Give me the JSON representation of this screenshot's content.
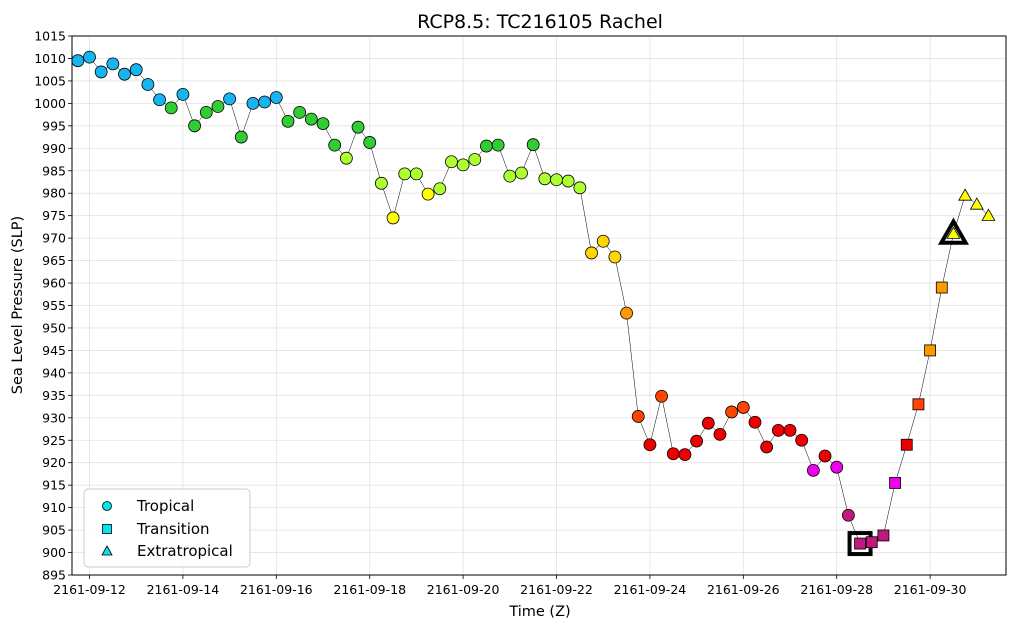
{
  "chart_data": {
    "type": "scatter",
    "title": "RCP8.5: TC216105 Rachel",
    "xlabel": "Time (Z)",
    "ylabel": "Sea Level Pressure (SLP)",
    "x_start_date": "2161-09-12",
    "xlim": [
      "2161-09-11T15:00",
      "2161-10-01T15:00"
    ],
    "ylim": [
      895,
      1015
    ],
    "ytick_step": 5,
    "xtick_labels": [
      "2161-09-12",
      "2161-09-14",
      "2161-09-16",
      "2161-09-18",
      "2161-09-20",
      "2161-09-22",
      "2161-09-24",
      "2161-09-26",
      "2161-09-28",
      "2161-09-30"
    ],
    "grid": true,
    "legend_position": "lower-left",
    "legend": [
      {
        "label": "Tropical",
        "marker": "circle",
        "color": "#00e5ee"
      },
      {
        "label": "Transition",
        "marker": "square",
        "color": "#00e5ee"
      },
      {
        "label": "Extratropical",
        "marker": "triangle",
        "color": "#00e5ee"
      }
    ],
    "category_colors": {
      "TD": "#18b4ef",
      "TS": "#32cd32",
      "C0": "#adff2f",
      "C1": "#ffff00",
      "C2": "#ffd700",
      "C3": "#ff9900",
      "C4": "#ff4500",
      "C5": "#ee0000",
      "C6": "#ee00ee",
      "C7": "#c0187f"
    },
    "points": [
      {
        "x": "2161-09-11T18:00",
        "y": 1009.5,
        "marker": "circle",
        "cat": "TD"
      },
      {
        "x": "2161-09-12T00:00",
        "y": 1010.3,
        "marker": "circle",
        "cat": "TD"
      },
      {
        "x": "2161-09-12T06:00",
        "y": 1007.0,
        "marker": "circle",
        "cat": "TD"
      },
      {
        "x": "2161-09-12T12:00",
        "y": 1008.8,
        "marker": "circle",
        "cat": "TD"
      },
      {
        "x": "2161-09-12T18:00",
        "y": 1006.5,
        "marker": "circle",
        "cat": "TD"
      },
      {
        "x": "2161-09-13T00:00",
        "y": 1007.5,
        "marker": "circle",
        "cat": "TD"
      },
      {
        "x": "2161-09-13T06:00",
        "y": 1004.2,
        "marker": "circle",
        "cat": "TD"
      },
      {
        "x": "2161-09-13T12:00",
        "y": 1000.8,
        "marker": "circle",
        "cat": "TD"
      },
      {
        "x": "2161-09-13T18:00",
        "y": 999.0,
        "marker": "circle",
        "cat": "TS"
      },
      {
        "x": "2161-09-14T00:00",
        "y": 1002.0,
        "marker": "circle",
        "cat": "TD"
      },
      {
        "x": "2161-09-14T06:00",
        "y": 995.0,
        "marker": "circle",
        "cat": "TS"
      },
      {
        "x": "2161-09-14T12:00",
        "y": 998.0,
        "marker": "circle",
        "cat": "TS"
      },
      {
        "x": "2161-09-14T18:00",
        "y": 999.3,
        "marker": "circle",
        "cat": "TS"
      },
      {
        "x": "2161-09-15T00:00",
        "y": 1001.0,
        "marker": "circle",
        "cat": "TD"
      },
      {
        "x": "2161-09-15T06:00",
        "y": 992.5,
        "marker": "circle",
        "cat": "TS"
      },
      {
        "x": "2161-09-15T12:00",
        "y": 1000.0,
        "marker": "circle",
        "cat": "TD"
      },
      {
        "x": "2161-09-15T18:00",
        "y": 1000.3,
        "marker": "circle",
        "cat": "TD"
      },
      {
        "x": "2161-09-16T00:00",
        "y": 1001.3,
        "marker": "circle",
        "cat": "TD"
      },
      {
        "x": "2161-09-16T06:00",
        "y": 996.0,
        "marker": "circle",
        "cat": "TS"
      },
      {
        "x": "2161-09-16T12:00",
        "y": 998.0,
        "marker": "circle",
        "cat": "TS"
      },
      {
        "x": "2161-09-16T18:00",
        "y": 996.5,
        "marker": "circle",
        "cat": "TS"
      },
      {
        "x": "2161-09-17T00:00",
        "y": 995.5,
        "marker": "circle",
        "cat": "TS"
      },
      {
        "x": "2161-09-17T06:00",
        "y": 990.7,
        "marker": "circle",
        "cat": "TS"
      },
      {
        "x": "2161-09-17T12:00",
        "y": 987.8,
        "marker": "circle",
        "cat": "C0"
      },
      {
        "x": "2161-09-17T18:00",
        "y": 994.7,
        "marker": "circle",
        "cat": "TS"
      },
      {
        "x": "2161-09-18T00:00",
        "y": 991.3,
        "marker": "circle",
        "cat": "TS"
      },
      {
        "x": "2161-09-18T06:00",
        "y": 982.2,
        "marker": "circle",
        "cat": "C0"
      },
      {
        "x": "2161-09-18T12:00",
        "y": 974.5,
        "marker": "circle",
        "cat": "C1"
      },
      {
        "x": "2161-09-18T18:00",
        "y": 984.3,
        "marker": "circle",
        "cat": "C0"
      },
      {
        "x": "2161-09-19T00:00",
        "y": 984.3,
        "marker": "circle",
        "cat": "C0"
      },
      {
        "x": "2161-09-19T06:00",
        "y": 979.8,
        "marker": "circle",
        "cat": "C1"
      },
      {
        "x": "2161-09-19T12:00",
        "y": 981.0,
        "marker": "circle",
        "cat": "C0"
      },
      {
        "x": "2161-09-19T18:00",
        "y": 987.0,
        "marker": "circle",
        "cat": "C0"
      },
      {
        "x": "2161-09-20T00:00",
        "y": 986.3,
        "marker": "circle",
        "cat": "C0"
      },
      {
        "x": "2161-09-20T06:00",
        "y": 987.5,
        "marker": "circle",
        "cat": "C0"
      },
      {
        "x": "2161-09-20T12:00",
        "y": 990.5,
        "marker": "circle",
        "cat": "TS"
      },
      {
        "x": "2161-09-20T18:00",
        "y": 990.7,
        "marker": "circle",
        "cat": "TS"
      },
      {
        "x": "2161-09-21T00:00",
        "y": 983.8,
        "marker": "circle",
        "cat": "C0"
      },
      {
        "x": "2161-09-21T06:00",
        "y": 984.5,
        "marker": "circle",
        "cat": "C0"
      },
      {
        "x": "2161-09-21T12:00",
        "y": 990.8,
        "marker": "circle",
        "cat": "TS"
      },
      {
        "x": "2161-09-21T18:00",
        "y": 983.2,
        "marker": "circle",
        "cat": "C0"
      },
      {
        "x": "2161-09-22T00:00",
        "y": 983.0,
        "marker": "circle",
        "cat": "C0"
      },
      {
        "x": "2161-09-22T06:00",
        "y": 982.7,
        "marker": "circle",
        "cat": "C0"
      },
      {
        "x": "2161-09-22T12:00",
        "y": 981.2,
        "marker": "circle",
        "cat": "C0"
      },
      {
        "x": "2161-09-22T18:00",
        "y": 966.7,
        "marker": "circle",
        "cat": "C2"
      },
      {
        "x": "2161-09-23T00:00",
        "y": 969.3,
        "marker": "circle",
        "cat": "C2"
      },
      {
        "x": "2161-09-23T06:00",
        "y": 965.8,
        "marker": "circle",
        "cat": "C2"
      },
      {
        "x": "2161-09-23T12:00",
        "y": 953.3,
        "marker": "circle",
        "cat": "C3"
      },
      {
        "x": "2161-09-23T18:00",
        "y": 930.3,
        "marker": "circle",
        "cat": "C4"
      },
      {
        "x": "2161-09-24T00:00",
        "y": 924.0,
        "marker": "circle",
        "cat": "C5"
      },
      {
        "x": "2161-09-24T06:00",
        "y": 934.8,
        "marker": "circle",
        "cat": "C4"
      },
      {
        "x": "2161-09-24T12:00",
        "y": 922.0,
        "marker": "circle",
        "cat": "C5"
      },
      {
        "x": "2161-09-24T18:00",
        "y": 921.8,
        "marker": "circle",
        "cat": "C5"
      },
      {
        "x": "2161-09-25T00:00",
        "y": 924.8,
        "marker": "circle",
        "cat": "C5"
      },
      {
        "x": "2161-09-25T06:00",
        "y": 928.8,
        "marker": "circle",
        "cat": "C5"
      },
      {
        "x": "2161-09-25T12:00",
        "y": 926.3,
        "marker": "circle",
        "cat": "C5"
      },
      {
        "x": "2161-09-25T18:00",
        "y": 931.3,
        "marker": "circle",
        "cat": "C4"
      },
      {
        "x": "2161-09-26T00:00",
        "y": 932.3,
        "marker": "circle",
        "cat": "C4"
      },
      {
        "x": "2161-09-26T06:00",
        "y": 929.0,
        "marker": "circle",
        "cat": "C5"
      },
      {
        "x": "2161-09-26T12:00",
        "y": 923.5,
        "marker": "circle",
        "cat": "C5"
      },
      {
        "x": "2161-09-26T18:00",
        "y": 927.2,
        "marker": "circle",
        "cat": "C5"
      },
      {
        "x": "2161-09-27T00:00",
        "y": 927.2,
        "marker": "circle",
        "cat": "C5"
      },
      {
        "x": "2161-09-27T06:00",
        "y": 925.0,
        "marker": "circle",
        "cat": "C5"
      },
      {
        "x": "2161-09-27T12:00",
        "y": 918.3,
        "marker": "circle",
        "cat": "C6"
      },
      {
        "x": "2161-09-27T18:00",
        "y": 921.5,
        "marker": "circle",
        "cat": "C5"
      },
      {
        "x": "2161-09-28T00:00",
        "y": 919.0,
        "marker": "circle",
        "cat": "C6"
      },
      {
        "x": "2161-09-28T06:00",
        "y": 908.3,
        "marker": "circle",
        "cat": "C7"
      },
      {
        "x": "2161-09-28T12:00",
        "y": 902.0,
        "marker": "square",
        "cat": "C7",
        "highlight": true
      },
      {
        "x": "2161-09-28T18:00",
        "y": 902.3,
        "marker": "square",
        "cat": "C7"
      },
      {
        "x": "2161-09-29T00:00",
        "y": 903.8,
        "marker": "square",
        "cat": "C7"
      },
      {
        "x": "2161-09-29T06:00",
        "y": 915.5,
        "marker": "square",
        "cat": "C6"
      },
      {
        "x": "2161-09-29T12:00",
        "y": 924.0,
        "marker": "square",
        "cat": "C5"
      },
      {
        "x": "2161-09-29T18:00",
        "y": 933.0,
        "marker": "square",
        "cat": "C4"
      },
      {
        "x": "2161-09-30T00:00",
        "y": 945.0,
        "marker": "square",
        "cat": "C3"
      },
      {
        "x": "2161-09-30T06:00",
        "y": 959.0,
        "marker": "square",
        "cat": "C3"
      },
      {
        "x": "2161-09-30T12:00",
        "y": 971.0,
        "marker": "triangle",
        "cat": "C1",
        "highlight": true
      },
      {
        "x": "2161-09-30T18:00",
        "y": 979.5,
        "marker": "triangle",
        "cat": "C1"
      },
      {
        "x": "2161-10-01T00:00",
        "y": 977.5,
        "marker": "triangle",
        "cat": "C1"
      },
      {
        "x": "2161-10-01T06:00",
        "y": 975.0,
        "marker": "triangle",
        "cat": "C1"
      }
    ]
  }
}
